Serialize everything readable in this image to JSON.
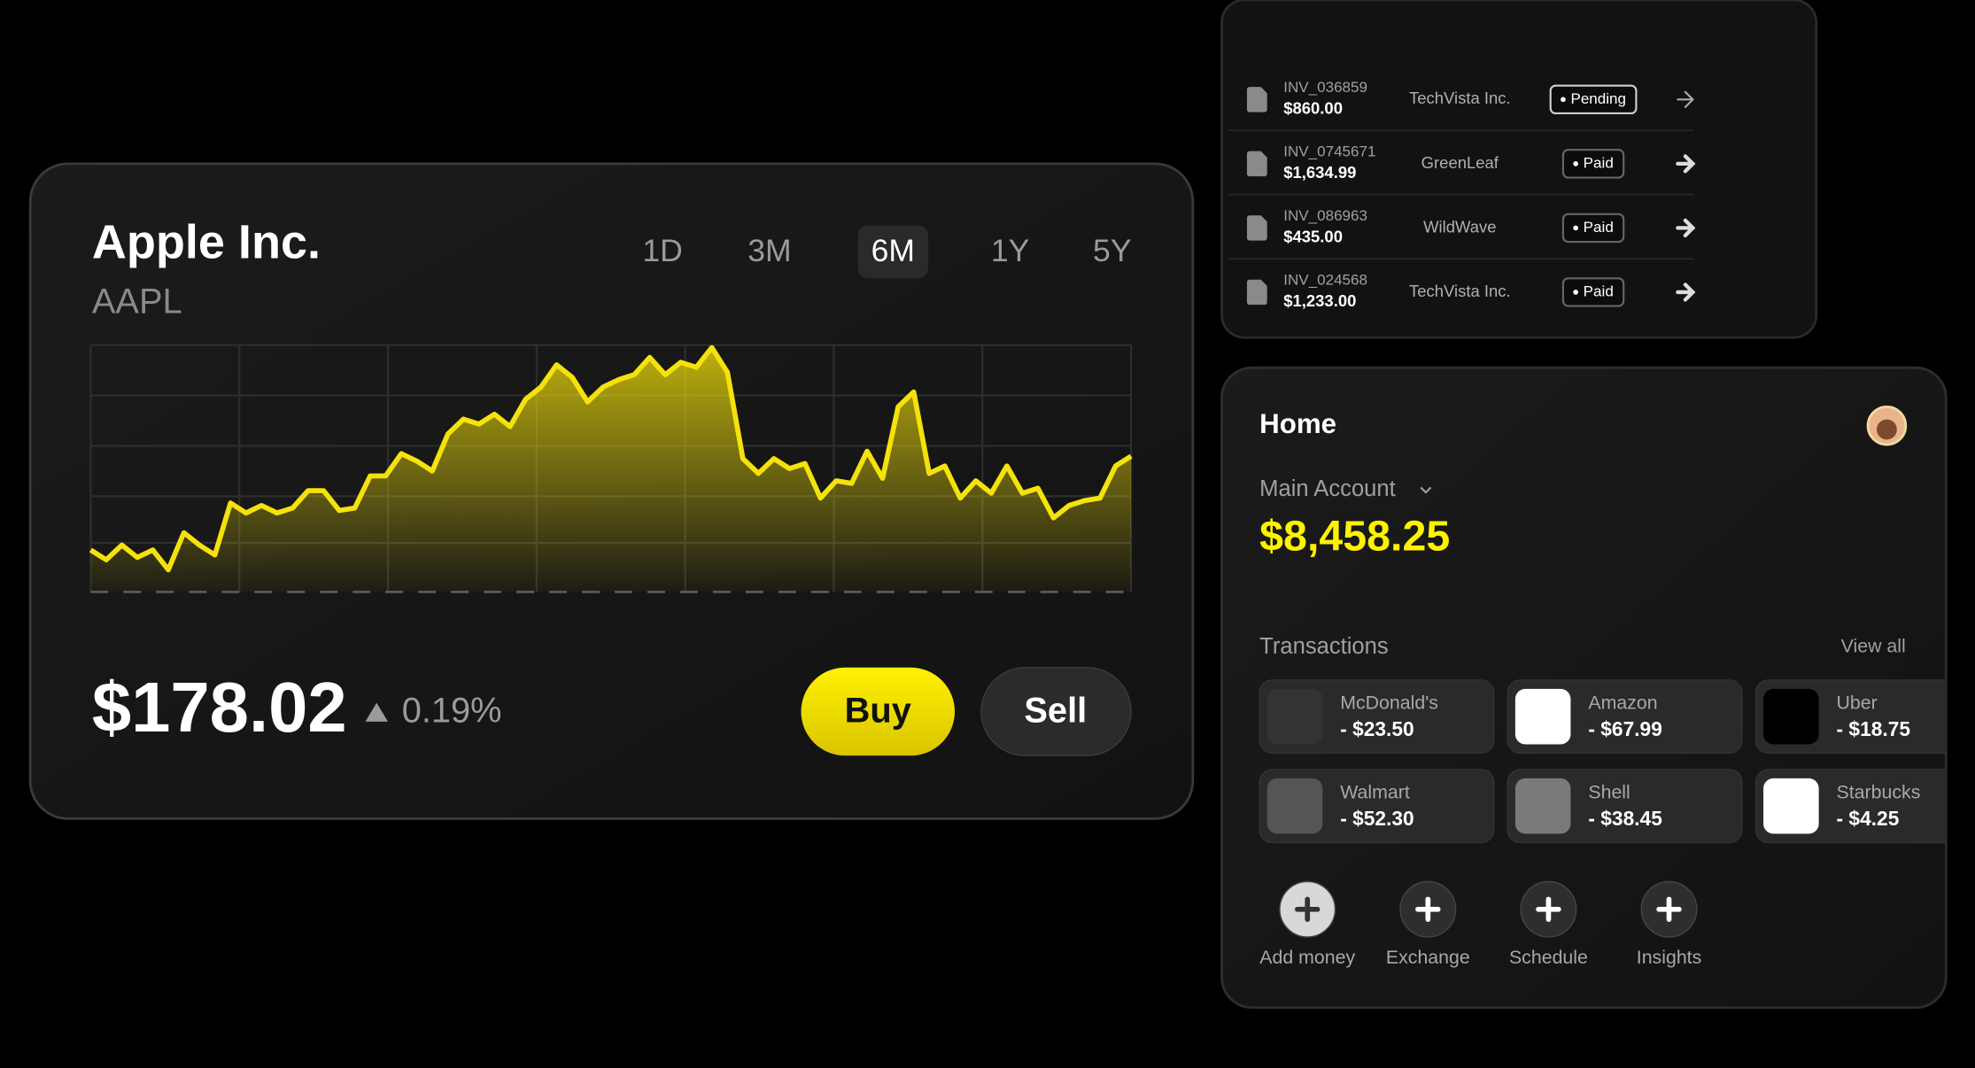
{
  "stock_card": {
    "title": "Apple Inc.",
    "ticker": "AAPL",
    "ranges": [
      "1D",
      "3M",
      "6M",
      "1Y",
      "5Y"
    ],
    "selected_range": "6M",
    "chart": {
      "type": "line",
      "color": "#f5e20a",
      "ylim": [
        0,
        100
      ],
      "values": [
        17,
        13,
        19,
        14,
        17,
        9,
        24,
        19,
        15,
        36,
        32,
        35,
        32,
        34,
        41,
        41,
        33,
        34,
        47,
        47,
        56,
        53,
        49,
        64,
        70,
        68,
        72,
        67,
        78,
        83,
        92,
        87,
        77,
        83,
        86,
        88,
        95,
        88,
        93,
        91,
        99,
        89,
        54,
        48,
        54,
        50,
        52,
        38,
        45,
        44,
        57,
        46,
        75,
        81,
        48,
        51,
        38,
        45,
        40,
        51,
        40,
        42,
        30,
        35,
        37,
        38,
        51,
        55
      ]
    },
    "price": "$178.02",
    "change": "0.19%",
    "buttons": [
      "Buy",
      "Sell"
    ]
  },
  "invoices": {
    "rows": [
      {
        "id": "INV_036859",
        "amount": "$860.00",
        "company": "TechVista Inc.",
        "status": "Pending"
      },
      {
        "id": "INV_0745671",
        "amount": "$1,634.99",
        "company": "GreenLeaf",
        "status": "Paid"
      },
      {
        "id": "INV_086963",
        "amount": "$435.00",
        "company": "WildWave",
        "status": "Paid"
      },
      {
        "id": "INV_024568",
        "amount": "$1,233.00",
        "company": "TechVista Inc.",
        "status": "Paid"
      }
    ]
  },
  "home": {
    "title": "Home",
    "account": "Main Account",
    "balance": "$8,458.25",
    "transactions_label": "Transactions",
    "view_all": "View all",
    "transactions": [
      {
        "merchant": "McDonald's",
        "amount": "- $23.50"
      },
      {
        "merchant": "Amazon",
        "amount": "- $67.99"
      },
      {
        "merchant": "Uber",
        "amount": "- $18.75"
      },
      {
        "merchant": "Walmart",
        "amount": "- $52.30"
      },
      {
        "merchant": "Shell",
        "amount": "- $38.45"
      },
      {
        "merchant": "Starbucks",
        "amount": "- $4.25"
      }
    ],
    "actions": [
      "Add money",
      "Exchange",
      "Schedule",
      "Insights"
    ]
  }
}
